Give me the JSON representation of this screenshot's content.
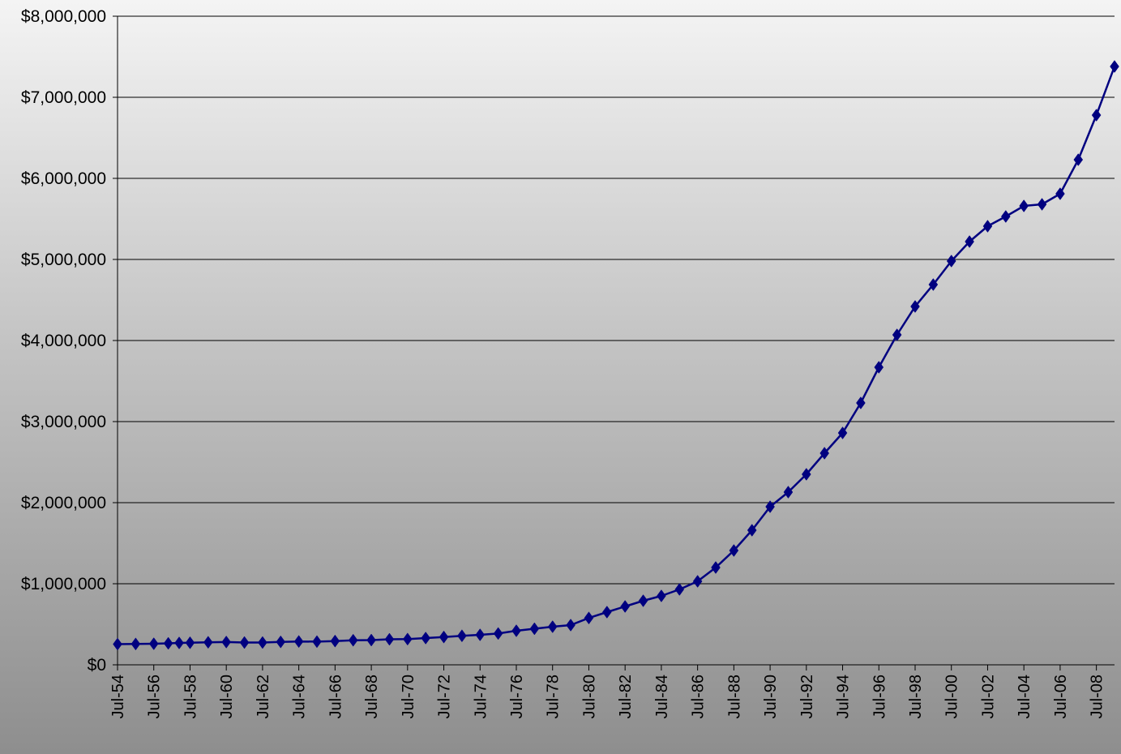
{
  "chart_data": {
    "type": "line",
    "title": "",
    "xlabel": "",
    "ylabel": "",
    "ylim": [
      0,
      8000000
    ],
    "y_ticks": [
      0,
      1000000,
      2000000,
      3000000,
      4000000,
      5000000,
      6000000,
      7000000,
      8000000
    ],
    "y_tick_labels": [
      "$0",
      "$1,000,000",
      "$2,000,000",
      "$3,000,000",
      "$4,000,000",
      "$5,000,000",
      "$6,000,000",
      "$7,000,000",
      "$8,000,000"
    ],
    "x_tick_labels": [
      "Jul-54",
      "Jul-56",
      "Jul-58",
      "Jul-60",
      "Jul-62",
      "Jul-64",
      "Jul-66",
      "Jul-68",
      "Jul-70",
      "Jul-72",
      "Jul-74",
      "Jul-76",
      "Jul-78",
      "Jul-80",
      "Jul-82",
      "Jul-84",
      "Jul-86",
      "Jul-88",
      "Jul-90",
      "Jul-92",
      "Jul-94",
      "Jul-96",
      "Jul-98",
      "Jul-00",
      "Jul-02",
      "Jul-04",
      "Jul-06",
      "Jul-08"
    ],
    "grid": true,
    "legend": "none",
    "line_color": "#000080",
    "marker": "diamond",
    "series": [
      {
        "values": [
          [
            1954.5,
            255000
          ],
          [
            1955.5,
            257000
          ],
          [
            1956.5,
            260000
          ],
          [
            1957.3,
            265000
          ],
          [
            1957.9,
            270000
          ],
          [
            1958.5,
            272000
          ],
          [
            1959.5,
            278000
          ],
          [
            1960.5,
            281000
          ],
          [
            1961.5,
            275000
          ],
          [
            1962.5,
            275000
          ],
          [
            1963.5,
            283000
          ],
          [
            1964.5,
            288000
          ],
          [
            1965.5,
            286000
          ],
          [
            1966.5,
            293000
          ],
          [
            1967.5,
            303000
          ],
          [
            1968.5,
            305000
          ],
          [
            1969.5,
            315000
          ],
          [
            1970.5,
            317000
          ],
          [
            1971.5,
            330000
          ],
          [
            1972.5,
            343000
          ],
          [
            1973.5,
            358000
          ],
          [
            1974.5,
            370000
          ],
          [
            1975.5,
            386000
          ],
          [
            1976.5,
            420000
          ],
          [
            1977.5,
            445000
          ],
          [
            1978.5,
            470000
          ],
          [
            1979.5,
            490000
          ],
          [
            1980.5,
            578000
          ],
          [
            1981.5,
            650000
          ],
          [
            1982.5,
            720000
          ],
          [
            1983.5,
            790000
          ],
          [
            1984.5,
            850000
          ],
          [
            1985.5,
            930000
          ],
          [
            1986.5,
            1030000
          ],
          [
            1987.5,
            1200000
          ],
          [
            1988.5,
            1410000
          ],
          [
            1989.5,
            1660000
          ],
          [
            1990.5,
            1950000
          ],
          [
            1991.5,
            2130000
          ],
          [
            1992.5,
            2350000
          ],
          [
            1993.5,
            2610000
          ],
          [
            1994.5,
            2860000
          ],
          [
            1995.5,
            3230000
          ],
          [
            1996.5,
            3670000
          ],
          [
            1997.5,
            4070000
          ],
          [
            1998.5,
            4420000
          ],
          [
            1999.5,
            4690000
          ],
          [
            2000.5,
            4980000
          ],
          [
            2001.5,
            5220000
          ],
          [
            2002.5,
            5410000
          ],
          [
            2003.5,
            5530000
          ],
          [
            2004.5,
            5660000
          ],
          [
            2005.5,
            5680000
          ],
          [
            2006.5,
            5810000
          ],
          [
            2007.5,
            6230000
          ],
          [
            2008.5,
            6780000
          ],
          [
            2009.5,
            7380000
          ]
        ]
      }
    ]
  }
}
